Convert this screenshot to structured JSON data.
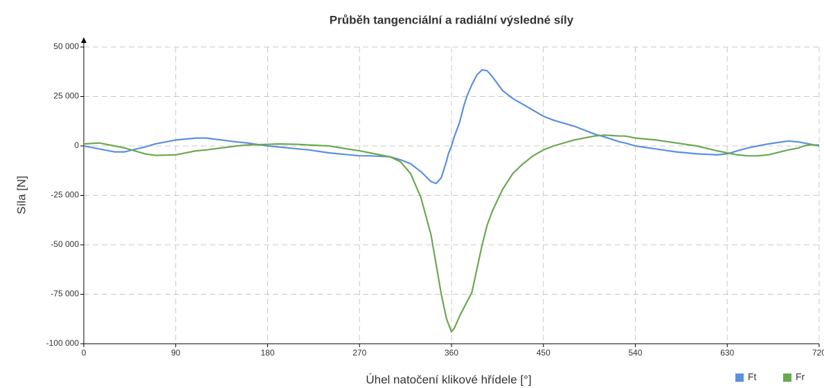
{
  "chart_data": {
    "type": "line",
    "title": "Průběh tangenciální a radiální výsledné síly",
    "xlabel": "Úhel natočení klikové hřídele [°]",
    "ylabel": "Síla [N]",
    "x": [
      0,
      15,
      30,
      40,
      60,
      70,
      90,
      110,
      120,
      150,
      160,
      180,
      190,
      210,
      220,
      240,
      270,
      280,
      300,
      310,
      320,
      330,
      340,
      345,
      350,
      355,
      357,
      360,
      363,
      368,
      372,
      375,
      380,
      385,
      390,
      395,
      400,
      410,
      420,
      430,
      440,
      450,
      460,
      480,
      500,
      510,
      525,
      530,
      540,
      560,
      580,
      600,
      620,
      630,
      640,
      650,
      660,
      670,
      690,
      700,
      705,
      710,
      720
    ],
    "series": [
      {
        "name": "Ft",
        "color": "#5b8fe0",
        "values": [
          0,
          -1500,
          -3000,
          -3000,
          -500,
          1000,
          3000,
          4000,
          4000,
          2000,
          1500,
          0,
          -500,
          -1500,
          -2000,
          -3500,
          -5000,
          -5000,
          -5500,
          -7000,
          -9000,
          -13000,
          -18000,
          -19000,
          -16000,
          -8000,
          -4000,
          0,
          5000,
          12000,
          20000,
          25000,
          31000,
          36000,
          38500,
          38000,
          35000,
          28000,
          24000,
          21000,
          18000,
          15000,
          13000,
          10000,
          6000,
          4500,
          2000,
          1500,
          0,
          -1500,
          -3000,
          -4000,
          -4500,
          -4000,
          -2500,
          -1000,
          0,
          1000,
          2500,
          2000,
          1500,
          1000,
          0
        ]
      },
      {
        "name": "Fr",
        "color": "#6aa84f",
        "values": [
          1000,
          1500,
          0,
          -1000,
          -4000,
          -4800,
          -4500,
          -2500,
          -2000,
          0,
          500,
          800,
          1000,
          800,
          500,
          0,
          -2500,
          -3500,
          -5500,
          -8000,
          -14000,
          -26000,
          -45000,
          -60000,
          -75000,
          -87000,
          -90000,
          -94000,
          -92000,
          -86000,
          -82000,
          -79000,
          -74000,
          -62000,
          -50000,
          -40000,
          -33000,
          -22000,
          -14000,
          -9000,
          -5000,
          -2000,
          0,
          3000,
          5000,
          5500,
          5000,
          5000,
          4000,
          3000,
          1500,
          0,
          -2500,
          -3500,
          -4500,
          -5000,
          -5000,
          -4500,
          -2000,
          -1000,
          0,
          500,
          500
        ]
      }
    ],
    "xlim": [
      0,
      720
    ],
    "xticks": [
      0,
      90,
      180,
      270,
      360,
      450,
      540,
      630,
      720
    ],
    "ylim": [
      -100000,
      50000
    ],
    "yticks": [
      {
        "value": -100000,
        "label": "-100 000"
      },
      {
        "value": -75000,
        "label": "-75 000"
      },
      {
        "value": -50000,
        "label": "-50 000"
      },
      {
        "value": -25000,
        "label": "-25 000"
      },
      0,
      {
        "value": 25000,
        "label": "25 000"
      },
      {
        "value": 50000,
        "label": "50 000"
      }
    ],
    "grid": true,
    "legend": "bottom-right"
  }
}
